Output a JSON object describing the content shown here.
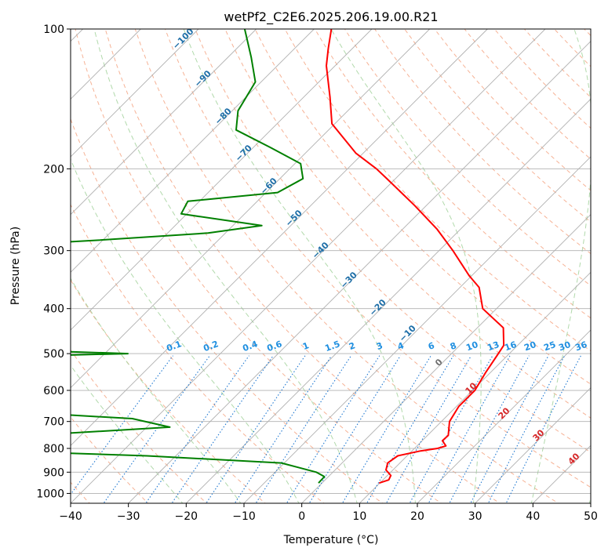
{
  "chart_data": {
    "type": "line",
    "title": "wetPf2_C2E6.2025.206.19.00.R21",
    "xlabel": "Temperature (°C)",
    "ylabel": "Pressure (hPa)",
    "xlim": [
      -40,
      50
    ],
    "ylim": [
      1050,
      100
    ],
    "y_scale": "log",
    "skew": true,
    "grid": true,
    "x_ticks": [
      "−40",
      "−30",
      "−20",
      "−10",
      "0",
      "10",
      "20",
      "30",
      "40",
      "50"
    ],
    "y_ticks": [
      "1000",
      "900",
      "800",
      "700",
      "600",
      "500",
      "400",
      "300",
      "200",
      "100"
    ],
    "series": [
      {
        "color": "#ff0000",
        "points": [
          [
            950,
            9.9
          ],
          [
            935,
            11.0
          ],
          [
            915,
            10.6
          ],
          [
            890,
            8.8
          ],
          [
            860,
            7.9
          ],
          [
            830,
            8.4
          ],
          [
            810,
            11.5
          ],
          [
            800,
            14.0
          ],
          [
            790,
            15.0
          ],
          [
            770,
            13.5
          ],
          [
            750,
            13.6
          ],
          [
            700,
            11.4
          ],
          [
            650,
            10.4
          ],
          [
            600,
            10.4
          ],
          [
            550,
            9.2
          ],
          [
            500,
            8.1
          ],
          [
            480,
            7.6
          ],
          [
            440,
            4.5
          ],
          [
            400,
            -2.4
          ],
          [
            360,
            -6.7
          ],
          [
            340,
            -10.4
          ],
          [
            300,
            -17.6
          ],
          [
            270,
            -24.0
          ],
          [
            240,
            -32.0
          ],
          [
            210,
            -41.5
          ],
          [
            200,
            -45.0
          ],
          [
            185,
            -51.3
          ],
          [
            160,
            -60.5
          ],
          [
            140,
            -65.5
          ],
          [
            120,
            -71.5
          ],
          [
            110,
            -74.2
          ],
          [
            100,
            -77.0
          ]
        ]
      },
      {
        "color": "#008000",
        "points": [
          [
            950,
            -0.6
          ],
          [
            920,
            -0.7
          ],
          [
            900,
            -2.9
          ],
          [
            860,
            -10.5
          ],
          [
            830,
            -35.0
          ],
          [
            815,
            -55.0
          ],
          [
            800,
            -95.0
          ],
          [
            775,
            -140.0
          ],
          [
            760,
            -66.0
          ],
          [
            720,
            -36.0
          ],
          [
            690,
            -44.0
          ],
          [
            660,
            -73.0
          ],
          [
            630,
            -89.0
          ],
          [
            600,
            -103.0
          ],
          [
            520,
            -113.0
          ],
          [
            500,
            -56.0
          ],
          [
            480,
            -101.0
          ],
          [
            330,
            -112.0
          ],
          [
            300,
            -99.0
          ],
          [
            290,
            -91.0
          ],
          [
            285,
            -81.0
          ],
          [
            275,
            -63.0
          ],
          [
            265,
            -55.0
          ],
          [
            250,
            -71.0
          ],
          [
            235,
            -72.0
          ],
          [
            225,
            -58.0
          ],
          [
            210,
            -56.0
          ],
          [
            195,
            -59.0
          ],
          [
            180,
            -67.0
          ],
          [
            165,
            -76.0
          ],
          [
            150,
            -79.0
          ],
          [
            130,
            -81.0
          ],
          [
            115,
            -86.0
          ],
          [
            100,
            -92.0
          ]
        ]
      }
    ],
    "dry_adiabat_labels": [
      "−100",
      "−90",
      "−80",
      "−70",
      "−60",
      "−50",
      "−40",
      "−30",
      "−20",
      "−10",
      "0",
      "10",
      "20",
      "30",
      "40"
    ],
    "mixing_ratio_labels": [
      "0.1",
      "0.2",
      "0.4",
      "0.6",
      "1",
      "1.5",
      "2",
      "3",
      "4",
      "6",
      "8",
      "10",
      "13",
      "16",
      "20",
      "25",
      "30",
      "36"
    ],
    "colors": {
      "isotherm": "#b0b0b0",
      "dry_adiabat": "#f4a582",
      "moist_adiabat": "#a8d5a2",
      "mixing_ratio": "#1f78d1",
      "isobar": "#b0b0b0",
      "adiabat_label": "#1f6fa8",
      "warm_label": "#d62728",
      "mixing_label": "#1f8fe0",
      "axis": "#000000"
    }
  }
}
